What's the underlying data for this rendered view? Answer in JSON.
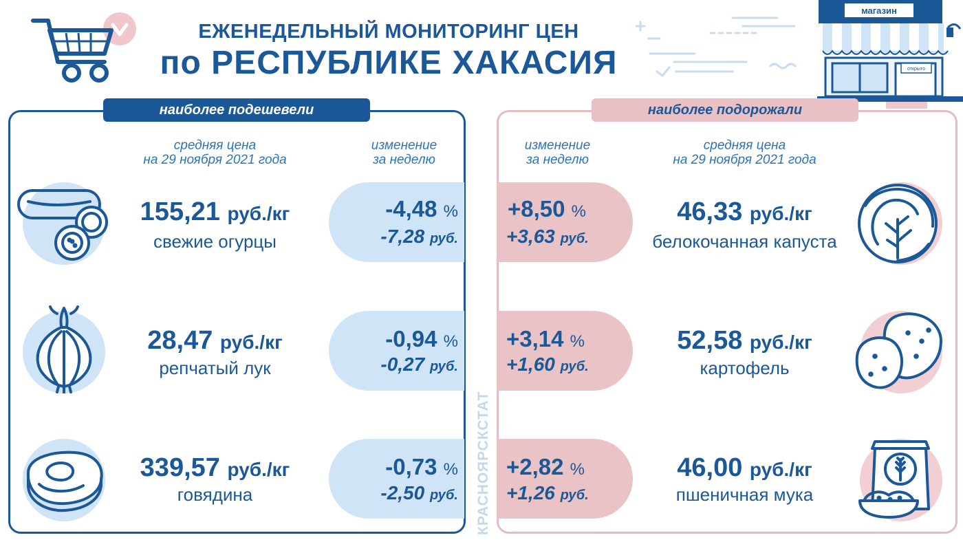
{
  "header": {
    "title_line1": "ЕЖЕНЕДЕЛЬНЫЙ МОНИТОРИНГ ЦЕН",
    "title_line2": "по РЕСПУБЛИКЕ ХАКАСИЯ",
    "shop_sign": "магазин",
    "shop_door_sign": "открыто"
  },
  "left_panel": {
    "tag": "наиболее подешевели",
    "col_price": [
      "средняя цена",
      "на 29 ноября 2021 года"
    ],
    "col_change": [
      "изменение",
      "за неделю"
    ],
    "items": [
      {
        "price": "155,21",
        "unit": "руб./кг",
        "name": "свежие огурцы",
        "pct": "-4,48",
        "pct_sign": "%",
        "rub": "-7,28",
        "rub_unit": "руб.",
        "icon": "cucumber-icon"
      },
      {
        "price": "28,47",
        "unit": "руб./кг",
        "name": "репчатый лук",
        "pct": "-0,94",
        "pct_sign": "%",
        "rub": "-0,27",
        "rub_unit": "руб.",
        "icon": "onion-icon"
      },
      {
        "price": "339,57",
        "unit": "руб./кг",
        "name": "говядина",
        "pct": "-0,73",
        "pct_sign": "%",
        "rub": "-2,50",
        "rub_unit": "руб.",
        "icon": "beef-icon"
      }
    ]
  },
  "right_panel": {
    "tag": "наиболее подорожали",
    "col_change": [
      "изменение",
      "за неделю"
    ],
    "col_price": [
      "средняя цена",
      "на 29 ноября 2021 года"
    ],
    "items": [
      {
        "price": "46,33",
        "unit": "руб./кг",
        "name": "белокочанная капуста",
        "pct": "+8,50",
        "pct_sign": "%",
        "rub": "+3,63",
        "rub_unit": "руб.",
        "icon": "cabbage-icon"
      },
      {
        "price": "52,58",
        "unit": "руб./кг",
        "name": "картофель",
        "pct": "+3,14",
        "pct_sign": "%",
        "rub": "+1,60",
        "rub_unit": "руб.",
        "icon": "potato-icon"
      },
      {
        "price": "46,00",
        "unit": "руб./кг",
        "name": "пшеничная мука",
        "pct": "+2,82",
        "pct_sign": "%",
        "rub": "+1,26",
        "rub_unit": "руб.",
        "icon": "flour-bag-icon"
      }
    ]
  },
  "watermark": "КРАСНОЯРСКСТАТ",
  "colors": {
    "primary": "#1b5897",
    "light_blue": "#cfe4f6",
    "pink": "#eac3c6"
  }
}
